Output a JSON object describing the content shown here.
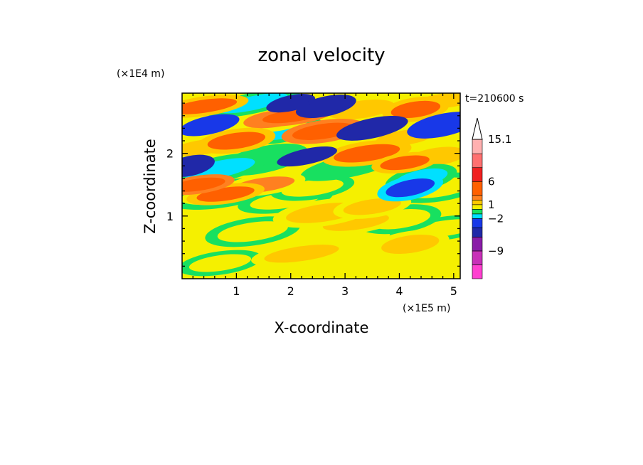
{
  "chart_data": {
    "type": "heatmap",
    "title": "zonal velocity",
    "xlabel": "X-coordinate",
    "ylabel": "Z-coordinate",
    "x_unit_label": "(×1E5 m)",
    "y_unit_label": "(×1E4 m)",
    "time_label": "t=210600 s",
    "xlim": [
      0,
      5.12
    ],
    "ylim": [
      0,
      2.96
    ],
    "x_ticks": [
      1,
      2,
      3,
      4,
      5
    ],
    "x_tick_labels": [
      "1",
      "2",
      "3",
      "4",
      "5"
    ],
    "y_ticks": [
      1,
      2
    ],
    "y_tick_labels": [
      "1",
      "2"
    ],
    "grid": false,
    "colorbar": {
      "position": "right",
      "labels": [
        {
          "value": 15.1,
          "text": "15.1"
        },
        {
          "value": 6,
          "text": "6"
        },
        {
          "value": 1,
          "text": "1"
        },
        {
          "value": -2,
          "text": "−2"
        },
        {
          "value": -9,
          "text": "−9"
        }
      ],
      "bands": [
        "#ff40d0",
        "#c830b8",
        "#8a1ca8",
        "#2028a8",
        "#1838e8",
        "#00e0ff",
        "#18e060",
        "#f5f000",
        "#ffc800",
        "#ff8020",
        "#ff6000",
        "#f02020",
        "#ff7070",
        "#ffb0b0"
      ],
      "extend": "max"
    },
    "features": [
      {
        "x": 0.7,
        "z": 0.25,
        "value": 0
      },
      {
        "x": 2.2,
        "z": 0.4,
        "value": 1
      },
      {
        "x": 4.2,
        "z": 0.55,
        "value": 1
      },
      {
        "x": 1.3,
        "z": 0.75,
        "value": 0
      },
      {
        "x": 3.2,
        "z": 0.9,
        "value": 1
      },
      {
        "x": 4.8,
        "z": 0.8,
        "value": 0
      },
      {
        "x": 4.0,
        "z": 0.95,
        "value": 0
      },
      {
        "x": 2.6,
        "z": 1.05,
        "value": 1
      },
      {
        "x": 3.5,
        "z": 1.15,
        "value": 1
      },
      {
        "x": 1.9,
        "z": 1.25,
        "value": 0
      },
      {
        "x": 0.7,
        "z": 1.35,
        "value": 0
      },
      {
        "x": 2.4,
        "z": 1.45,
        "value": 0
      },
      {
        "x": 4.7,
        "z": 1.45,
        "value": 0
      },
      {
        "x": 4.4,
        "z": 1.6,
        "value": -2
      },
      {
        "x": 4.2,
        "z": 1.45,
        "value": -3
      },
      {
        "x": 0.3,
        "z": 1.5,
        "value": 4
      },
      {
        "x": 0.8,
        "z": 1.35,
        "value": 3
      },
      {
        "x": 1.5,
        "z": 1.5,
        "value": 2
      },
      {
        "x": 0.15,
        "z": 1.8,
        "value": -6
      },
      {
        "x": 0.7,
        "z": 1.75,
        "value": -2
      },
      {
        "x": 1.5,
        "z": 1.9,
        "value": -1
      },
      {
        "x": 2.3,
        "z": 1.95,
        "value": -6
      },
      {
        "x": 3.1,
        "z": 1.8,
        "value": -1
      },
      {
        "x": 3.4,
        "z": 2.0,
        "value": 3
      },
      {
        "x": 4.1,
        "z": 1.85,
        "value": 3
      },
      {
        "x": 4.7,
        "z": 1.95,
        "value": 1
      },
      {
        "x": 0.4,
        "z": 2.1,
        "value": 1
      },
      {
        "x": 1.0,
        "z": 2.2,
        "value": 3
      },
      {
        "x": 1.9,
        "z": 2.35,
        "value": -2
      },
      {
        "x": 2.6,
        "z": 2.35,
        "value": 4
      },
      {
        "x": 0.5,
        "z": 2.45,
        "value": -4
      },
      {
        "x": 3.5,
        "z": 2.4,
        "value": -6
      },
      {
        "x": 3.0,
        "z": 2.55,
        "value": -1
      },
      {
        "x": 4.1,
        "z": 2.25,
        "value": 1
      },
      {
        "x": 4.8,
        "z": 2.45,
        "value": -4
      },
      {
        "x": 1.7,
        "z": 2.55,
        "value": 2
      },
      {
        "x": 2.05,
        "z": 2.6,
        "value": 4
      },
      {
        "x": 0.4,
        "z": 2.75,
        "value": 3
      },
      {
        "x": 1.3,
        "z": 2.8,
        "value": -2
      },
      {
        "x": 2.0,
        "z": 2.8,
        "value": -6
      },
      {
        "x": 2.65,
        "z": 2.75,
        "value": -6
      },
      {
        "x": 3.3,
        "z": 2.7,
        "value": 1
      },
      {
        "x": 4.3,
        "z": 2.7,
        "value": 3
      },
      {
        "x": 4.9,
        "z": 2.85,
        "value": 1
      }
    ]
  }
}
